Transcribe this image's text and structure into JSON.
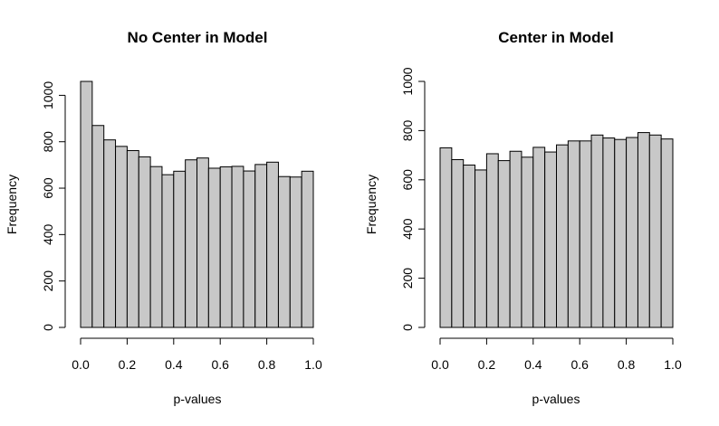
{
  "chart_data": [
    {
      "type": "bar",
      "title": "No Center in Model",
      "xlabel": "p-values",
      "ylabel": "Frequency",
      "bin_edges": [
        0.0,
        0.05,
        0.1,
        0.15,
        0.2,
        0.25,
        0.3,
        0.35,
        0.4,
        0.45,
        0.5,
        0.55,
        0.6,
        0.65,
        0.7,
        0.75,
        0.8,
        0.85,
        0.9,
        0.95,
        1.0
      ],
      "values": [
        1060,
        870,
        808,
        780,
        762,
        735,
        693,
        658,
        673,
        722,
        730,
        686,
        692,
        694,
        674,
        702,
        712,
        650,
        648,
        673
      ],
      "xlim": [
        0,
        1
      ],
      "ylim": [
        0,
        1060
      ],
      "xticks": [
        0.0,
        0.2,
        0.4,
        0.6,
        0.8,
        1.0
      ],
      "xtick_labels": [
        "0.0",
        "0.2",
        "0.4",
        "0.6",
        "0.8",
        "1.0"
      ],
      "yticks": [
        0,
        200,
        400,
        600,
        800,
        1000
      ],
      "ytick_labels": [
        "0",
        "200",
        "400",
        "600",
        "800",
        "1000"
      ],
      "bar_color": "#c8c8c8",
      "grid": false
    },
    {
      "type": "bar",
      "title": "Center in Model",
      "xlabel": "p-values",
      "ylabel": "Frequency",
      "bin_edges": [
        0.0,
        0.05,
        0.1,
        0.15,
        0.2,
        0.25,
        0.3,
        0.35,
        0.4,
        0.45,
        0.5,
        0.55,
        0.6,
        0.65,
        0.7,
        0.75,
        0.8,
        0.85,
        0.9,
        0.95,
        1.0
      ],
      "values": [
        730,
        682,
        660,
        640,
        706,
        678,
        716,
        692,
        732,
        713,
        742,
        758,
        758,
        782,
        770,
        764,
        772,
        792,
        782,
        766
      ],
      "xlim": [
        0,
        1
      ],
      "ylim": [
        0,
        1000
      ],
      "xticks": [
        0.0,
        0.2,
        0.4,
        0.6,
        0.8,
        1.0
      ],
      "xtick_labels": [
        "0.0",
        "0.2",
        "0.4",
        "0.6",
        "0.8",
        "1.0"
      ],
      "yticks": [
        0,
        200,
        400,
        600,
        800,
        1000
      ],
      "ytick_labels": [
        "0",
        "200",
        "400",
        "600",
        "800",
        "1000"
      ],
      "bar_color": "#c8c8c8",
      "grid": false
    }
  ]
}
